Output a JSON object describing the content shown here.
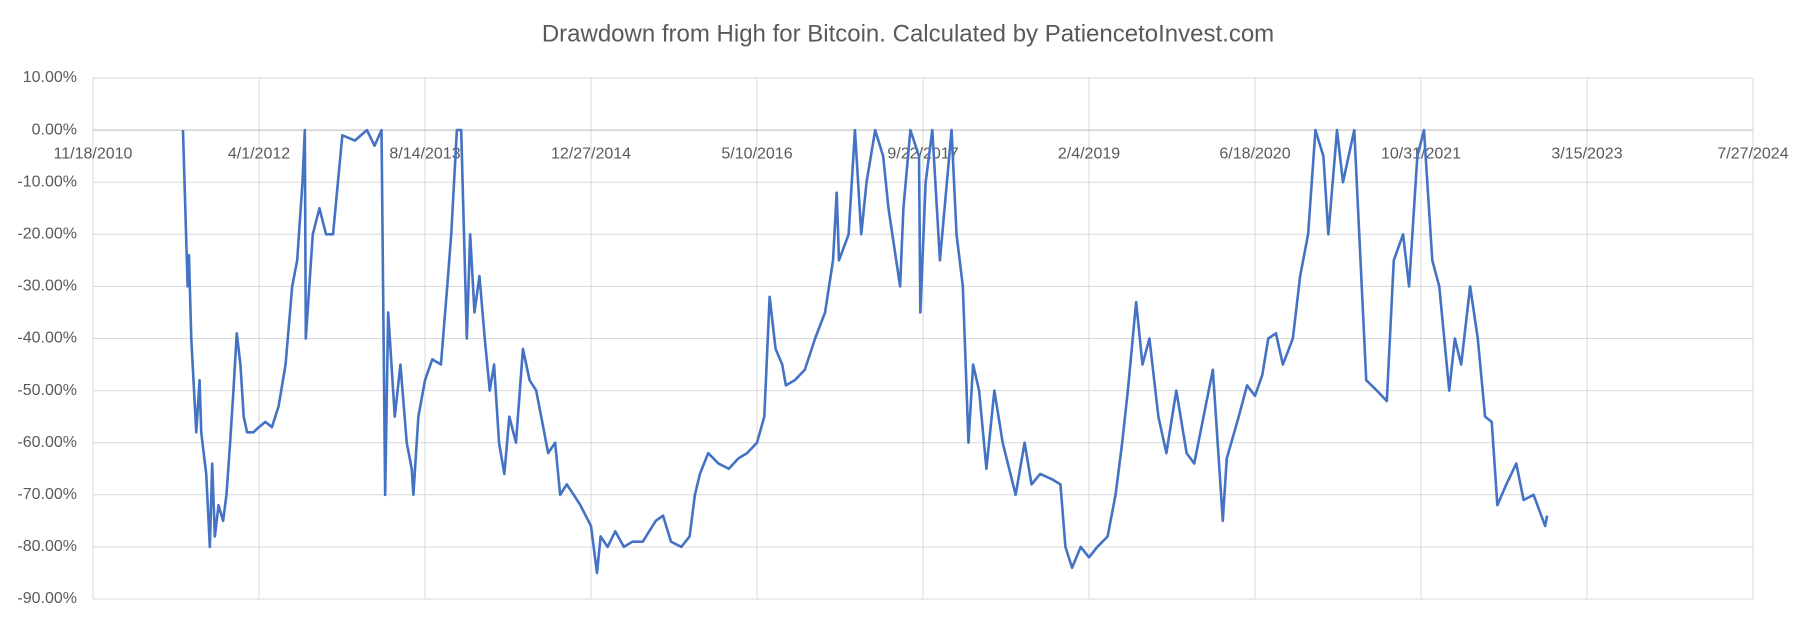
{
  "chart_data": {
    "type": "line",
    "title": "Drawdown from High for Bitcoin. Calculated by PatiencetoInvest.com",
    "x": [
      "8/16/2011",
      "8/30/2011",
      "9/3/2011",
      "9/10/2011",
      "9/25/2011",
      "10/5/2011",
      "10/10/2011",
      "10/25/2011",
      "11/5/2011",
      "11/12/2011",
      "11/20/2011",
      "12/1/2011",
      "12/15/2011",
      "12/25/2011",
      "1/5/2012",
      "1/15/2012",
      "1/25/2012",
      "2/5/2012",
      "2/15/2012",
      "2/25/2012",
      "3/15/2012",
      "4/1/2012",
      "4/20/2012",
      "5/10/2012",
      "5/30/2012",
      "6/20/2012",
      "7/10/2012",
      "7/25/2012",
      "8/10/2012",
      "8/17/2012",
      "8/20/2012",
      "9/10/2012",
      "9/30/2012",
      "10/20/2012",
      "11/10/2012",
      "12/8/2012",
      "1/15/2013",
      "2/20/2013",
      "3/15/2013",
      "4/5/2013",
      "4/16/2013",
      "4/25/2013",
      "5/15/2013",
      "6/1/2013",
      "6/20/2013",
      "7/5/2013",
      "7/10/2013",
      "7/25/2013",
      "8/14/2013",
      "9/5/2013",
      "10/1/2013",
      "10/20/2013",
      "11/1/2013",
      "11/18/2013",
      "12/1/2013",
      "12/18/2013",
      "12/28/2013",
      "1/10/2014",
      "1/25/2014",
      "2/10/2014",
      "2/25/2014",
      "3/10/2014",
      "3/25/2014",
      "4/10/2014",
      "4/25/2014",
      "5/15/2014",
      "6/5/2014",
      "6/25/2014",
      "7/15/2014",
      "7/30/2014",
      "8/20/2014",
      "9/10/2014",
      "9/25/2014",
      "10/15/2014",
      "11/5/2014",
      "11/25/2014",
      "12/27/2014",
      "1/14/2015",
      "1/25/2015",
      "2/15/2015",
      "3/10/2015",
      "4/5/2015",
      "5/1/2015",
      "6/1/2015",
      "7/10/2015",
      "8/1/2015",
      "8/25/2015",
      "9/25/2015",
      "10/20/2015",
      "11/5/2015",
      "11/20/2015",
      "12/15/2015",
      "1/15/2016",
      "2/15/2016",
      "3/15/2016",
      "4/10/2016",
      "5/10/2016",
      "6/1/2016",
      "6/17/2016",
      "7/5/2016",
      "7/25/2016",
      "8/5/2016",
      "9/1/2016",
      "10/1/2016",
      "11/1/2016",
      "12/1/2016",
      "12/25/2016",
      "1/5/2017",
      "1/12/2017",
      "2/10/2017",
      "3/1/2017",
      "3/20/2017",
      "4/5/2017",
      "5/1/2017",
      "5/25/2017",
      "6/10/2017",
      "7/15/2017",
      "7/25/2017",
      "8/15/2017",
      "9/10/2017",
      "9/14/2017",
      "9/30/2017",
      "10/20/2017",
      "11/12/2017",
      "12/17/2017",
      "1/1/2018",
      "1/20/2018",
      "2/6/2018",
      "2/20/2018",
      "3/10/2018",
      "4/1/2018",
      "4/25/2018",
      "5/20/2018",
      "6/28/2018",
      "7/25/2018",
      "8/15/2018",
      "9/10/2018",
      "10/15/2018",
      "11/10/2018",
      "11/25/2018",
      "12/15/2018",
      "1/10/2019",
      "2/4/2019",
      "3/1/2019",
      "4/1/2019",
      "4/25/2019",
      "5/15/2019",
      "6/1/2019",
      "6/26/2019",
      "7/15/2019",
      "8/5/2019",
      "9/1/2019",
      "9/25/2019",
      "10/25/2019",
      "11/25/2019",
      "12/18/2019",
      "1/15/2020",
      "2/12/2020",
      "3/13/2020",
      "3/25/2020",
      "4/30/2020",
      "5/25/2020",
      "6/18/2020",
      "7/10/2020",
      "7/28/2020",
      "8/20/2020",
      "9/10/2020",
      "10/10/2020",
      "11/1/2020",
      "11/25/2020",
      "12/17/2020",
      "1/10/2021",
      "1/25/2021",
      "2/20/2021",
      "3/10/2021",
      "4/13/2021",
      "5/19/2021",
      "6/20/2021",
      "7/20/2021",
      "8/10/2021",
      "9/7/2021",
      "9/25/2021",
      "10/20/2021",
      "11/9/2021",
      "12/4/2021",
      "12/25/2021",
      "1/24/2022",
      "2/10/2022",
      "3/1/2022",
      "3/28/2022",
      "4/20/2022",
      "5/12/2022",
      "6/1/2022",
      "6/18/2022",
      "7/15/2022",
      "8/14/2022",
      "9/5/2022",
      "10/5/2022",
      "11/9/2022",
      "11/15/2022"
    ],
    "series": [
      {
        "name": "Drawdown",
        "color": "#4472c4",
        "values": [
          0,
          -30,
          -24,
          -40,
          -58,
          -48,
          -58,
          -66,
          -80,
          -64,
          -78,
          -72,
          -75,
          -70,
          -60,
          -50,
          -39,
          -45,
          -55,
          -58,
          -58,
          -57,
          -56,
          -57,
          -53,
          -45,
          -30,
          -25,
          -10,
          0,
          -40,
          -20,
          -15,
          -20,
          -20,
          -1,
          -2,
          0,
          -3,
          0,
          -70,
          -35,
          -55,
          -45,
          -60,
          -65,
          -70,
          -55,
          -48,
          -44,
          -45,
          -30,
          -20,
          0,
          0,
          -40,
          -20,
          -35,
          -28,
          -40,
          -50,
          -45,
          -60,
          -66,
          -55,
          -60,
          -42,
          -48,
          -50,
          -55,
          -62,
          -60,
          -70,
          -68,
          -70,
          -72,
          -76,
          -85,
          -78,
          -80,
          -77,
          -80,
          -79,
          -79,
          -75,
          -74,
          -79,
          -80,
          -78,
          -70,
          -66,
          -62,
          -64,
          -65,
          -63,
          -62,
          -60,
          -55,
          -32,
          -42,
          -45,
          -49,
          -48,
          -46,
          -40,
          -35,
          -25,
          -12,
          -25,
          -20,
          0,
          -20,
          -10,
          0,
          -5,
          -15,
          -30,
          -15,
          0,
          -5,
          -35,
          -10,
          0,
          -25,
          0,
          -20,
          -30,
          -60,
          -45,
          -50,
          -65,
          -50,
          -60,
          -70,
          -60,
          -68,
          -66,
          -67,
          -68,
          -80,
          -84,
          -80,
          -82,
          -80,
          -78,
          -70,
          -60,
          -50,
          -33,
          -45,
          -40,
          -55,
          -62,
          -50,
          -62,
          -64,
          -55,
          -46,
          -75,
          -63,
          -55,
          -49,
          -51,
          -47,
          -40,
          -39,
          -45,
          -40,
          -28,
          -20,
          0,
          -5,
          -20,
          0,
          -10,
          0,
          -48,
          -50,
          -52,
          -25,
          -20,
          -30,
          -5,
          0,
          -25,
          -30,
          -50,
          -40,
          -45,
          -30,
          -40,
          -55,
          -56,
          -72,
          -68,
          -64,
          -71,
          -70,
          -76,
          -74
        ]
      }
    ],
    "xlim": [
      "11/18/2010",
      "7/27/2024"
    ],
    "xticks": [
      "11/18/2010",
      "4/1/2012",
      "8/14/2013",
      "12/27/2014",
      "5/10/2016",
      "9/22/2017",
      "2/4/2019",
      "6/18/2020",
      "10/31/2021",
      "3/15/2023",
      "7/27/2024"
    ],
    "ylim": [
      -90,
      10
    ],
    "yticks": [
      {
        "value": 10,
        "label": "10.00%"
      },
      {
        "value": 0,
        "label": "0.00%"
      },
      {
        "value": -10,
        "label": "-10.00%"
      },
      {
        "value": -20,
        "label": "-20.00%"
      },
      {
        "value": -30,
        "label": "-30.00%"
      },
      {
        "value": -40,
        "label": "-40.00%"
      },
      {
        "value": -50,
        "label": "-50.00%"
      },
      {
        "value": -60,
        "label": "-60.00%"
      },
      {
        "value": -70,
        "label": "-70.00%"
      },
      {
        "value": -80,
        "label": "-80.00%"
      },
      {
        "value": -90,
        "label": "-90.00%"
      }
    ],
    "grid": true
  }
}
